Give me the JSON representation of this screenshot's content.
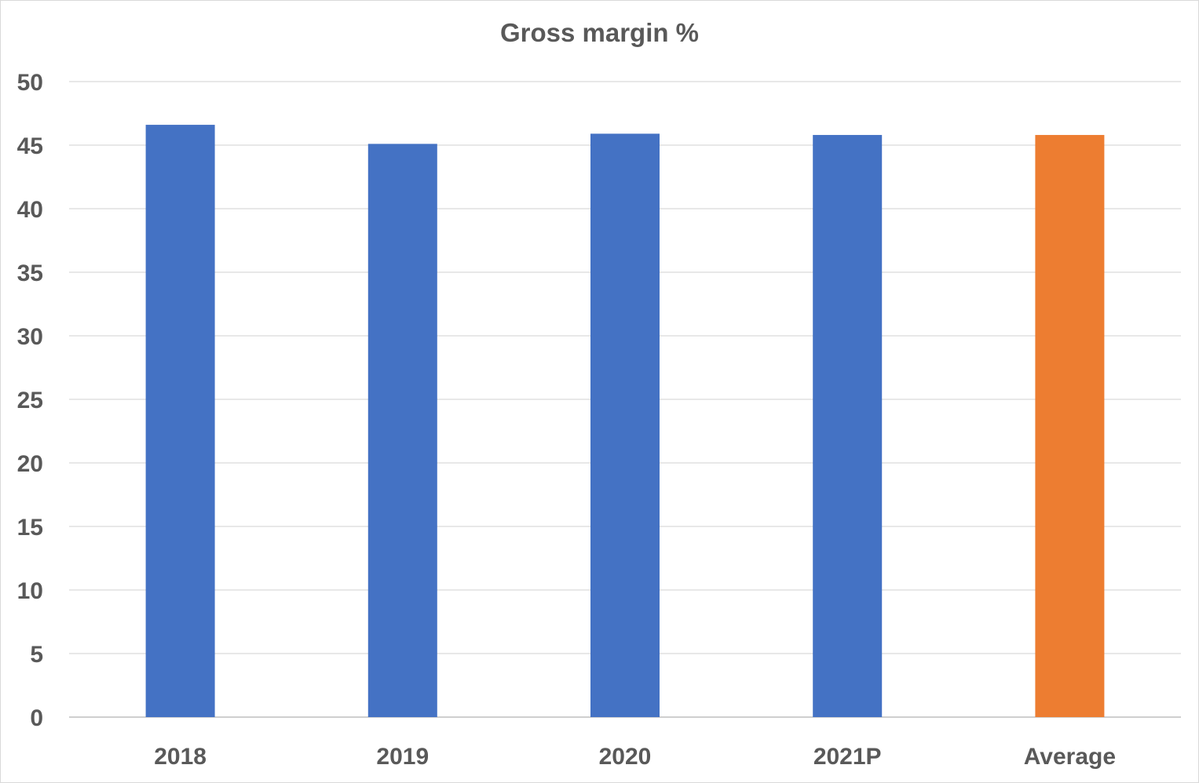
{
  "chart_data": {
    "type": "bar",
    "title": "Gross margin %",
    "xlabel": "",
    "ylabel": "",
    "categories": [
      "2018",
      "2019",
      "2020",
      "2021P",
      "Average"
    ],
    "values": [
      46.6,
      45.1,
      45.9,
      45.8,
      45.8
    ],
    "bar_colors": [
      "#4472c4",
      "#4472c4",
      "#4472c4",
      "#4472c4",
      "#ed7d31"
    ],
    "ylim": [
      0,
      50
    ],
    "yticks": [
      "0",
      "5",
      "10",
      "15",
      "20",
      "25",
      "30",
      "35",
      "40",
      "45",
      "50"
    ],
    "grid": true,
    "legend": "none"
  }
}
